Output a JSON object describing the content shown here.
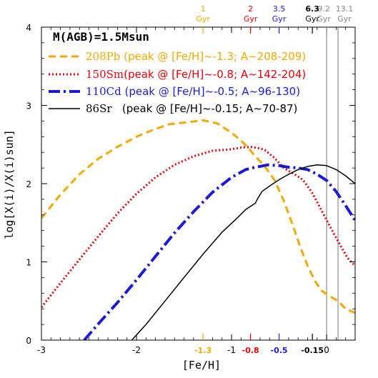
{
  "chart_data": {
    "type": "line",
    "title": "M(AGB)=1.5Msun",
    "xlabel": "[Fe/H]",
    "ylabel": "log[X(i)/X(i)sun]",
    "xlim": [
      -3,
      0.3
    ],
    "ylim": [
      0,
      4
    ],
    "x_ticks": [
      {
        "value": -3,
        "label": "-3"
      },
      {
        "value": -2,
        "label": "-2"
      },
      {
        "value": -1,
        "label": "-1"
      },
      {
        "value": 0,
        "label": "0"
      }
    ],
    "y_ticks": [
      {
        "value": 0,
        "label": "0"
      },
      {
        "value": 1,
        "label": "1"
      },
      {
        "value": 2,
        "label": "2"
      },
      {
        "value": 3,
        "label": "3"
      },
      {
        "value": 4,
        "label": "4"
      }
    ],
    "bottom_marks": [
      {
        "value": -1.3,
        "label": "-1.3",
        "color": "#f5a800"
      },
      {
        "value": -0.8,
        "label": "-0.8",
        "color": "#e8000b"
      },
      {
        "value": -0.5,
        "label": "-0.5",
        "color": "#1a1adb"
      },
      {
        "value": -0.15,
        "label": "-0.15",
        "color": "#000000"
      }
    ],
    "top_ages": [
      {
        "value": -1.3,
        "num": "1",
        "unit": "Gyr",
        "color": "#f5a800",
        "bold": false
      },
      {
        "value": -0.8,
        "num": "2",
        "unit": "Gyr",
        "color": "#e8000b",
        "bold": false
      },
      {
        "value": -0.5,
        "num": "3.5",
        "unit": "Gyr",
        "color": "#1a1adb",
        "bold": false
      },
      {
        "value": -0.15,
        "num": "6.3",
        "unit": "Gyr",
        "color": "#000000",
        "bold": true
      },
      {
        "value": 0.0,
        "num": "9.2",
        "unit": "Gyr",
        "color": "#888888",
        "bold": false
      },
      {
        "value": 0.12,
        "num": "13.1",
        "unit": "Gyr",
        "color": "#888888",
        "bold": false
      }
    ],
    "vertical_lines": [
      0.0,
      0.12
    ],
    "series": [
      {
        "name": "208Pb",
        "legend_rest": " (peak @ [Fe/H]~-1.3; A~208-209)",
        "color": "#f5a800",
        "dash": "10,6",
        "width": 3,
        "points": [
          [
            -3.0,
            1.56
          ],
          [
            -2.8,
            1.86
          ],
          [
            -2.6,
            2.12
          ],
          [
            -2.4,
            2.32
          ],
          [
            -2.2,
            2.47
          ],
          [
            -2.0,
            2.6
          ],
          [
            -1.8,
            2.7
          ],
          [
            -1.65,
            2.76
          ],
          [
            -1.5,
            2.78
          ],
          [
            -1.3,
            2.81
          ],
          [
            -1.15,
            2.77
          ],
          [
            -1.0,
            2.65
          ],
          [
            -0.9,
            2.55
          ],
          [
            -0.82,
            2.45
          ],
          [
            -0.75,
            2.35
          ],
          [
            -0.65,
            2.22
          ],
          [
            -0.55,
            2.05
          ],
          [
            -0.45,
            1.78
          ],
          [
            -0.35,
            1.45
          ],
          [
            -0.28,
            1.2
          ],
          [
            -0.2,
            0.95
          ],
          [
            -0.12,
            0.75
          ],
          [
            -0.05,
            0.63
          ],
          [
            0.05,
            0.55
          ],
          [
            0.12,
            0.5
          ],
          [
            0.2,
            0.4
          ],
          [
            0.3,
            0.35
          ]
        ]
      },
      {
        "name": "150Sm",
        "legend_rest": "(peak @ [Fe/H]~-0.8; A~142-204)",
        "color": "#e8000b",
        "dash": "2,3",
        "width": 3,
        "points": [
          [
            -3.0,
            0.42
          ],
          [
            -2.8,
            0.73
          ],
          [
            -2.6,
            1.03
          ],
          [
            -2.4,
            1.33
          ],
          [
            -2.2,
            1.62
          ],
          [
            -2.0,
            1.87
          ],
          [
            -1.8,
            2.08
          ],
          [
            -1.6,
            2.24
          ],
          [
            -1.4,
            2.35
          ],
          [
            -1.2,
            2.42
          ],
          [
            -1.0,
            2.44
          ],
          [
            -0.9,
            2.46
          ],
          [
            -0.8,
            2.47
          ],
          [
            -0.7,
            2.45
          ],
          [
            -0.65,
            2.43
          ],
          [
            -0.55,
            2.33
          ],
          [
            -0.45,
            2.2
          ],
          [
            -0.35,
            2.13
          ],
          [
            -0.25,
            2.05
          ],
          [
            -0.15,
            1.88
          ],
          [
            -0.05,
            1.65
          ],
          [
            0.05,
            1.42
          ],
          [
            0.15,
            1.2
          ],
          [
            0.22,
            1.05
          ],
          [
            0.3,
            0.95
          ]
        ]
      },
      {
        "name": "110Cd",
        "legend_rest": " (peak @ [Fe/H]~-0.5; A~96-130)",
        "color": "#1a1adb",
        "dash": "16,5,3,5",
        "width": 4,
        "points": [
          [
            -2.55,
            0.0
          ],
          [
            -2.4,
            0.21
          ],
          [
            -2.2,
            0.48
          ],
          [
            -2.0,
            0.77
          ],
          [
            -1.8,
            1.07
          ],
          [
            -1.6,
            1.37
          ],
          [
            -1.4,
            1.64
          ],
          [
            -1.2,
            1.89
          ],
          [
            -1.0,
            2.08
          ],
          [
            -0.85,
            2.18
          ],
          [
            -0.75,
            2.21
          ],
          [
            -0.7,
            2.22
          ],
          [
            -0.62,
            2.24
          ],
          [
            -0.5,
            2.23
          ],
          [
            -0.4,
            2.21
          ],
          [
            -0.3,
            2.2
          ],
          [
            -0.2,
            2.18
          ],
          [
            -0.1,
            2.12
          ],
          [
            0.0,
            2.04
          ],
          [
            0.1,
            1.9
          ],
          [
            0.2,
            1.72
          ],
          [
            0.3,
            1.53
          ]
        ]
      },
      {
        "name": "86Sr",
        "legend_rest": "   (peak @ [Fe/H]~-0.15; A~70-87)",
        "color": "#000000",
        "dash": "",
        "width": 1.5,
        "points": [
          [
            -2.05,
            0.0
          ],
          [
            -1.9,
            0.2
          ],
          [
            -1.7,
            0.5
          ],
          [
            -1.5,
            0.8
          ],
          [
            -1.3,
            1.1
          ],
          [
            -1.1,
            1.38
          ],
          [
            -0.95,
            1.55
          ],
          [
            -0.85,
            1.67
          ],
          [
            -0.75,
            1.75
          ],
          [
            -0.72,
            1.82
          ],
          [
            -0.68,
            1.9
          ],
          [
            -0.6,
            1.97
          ],
          [
            -0.5,
            2.05
          ],
          [
            -0.4,
            2.12
          ],
          [
            -0.3,
            2.18
          ],
          [
            -0.2,
            2.22
          ],
          [
            -0.1,
            2.24
          ],
          [
            0.0,
            2.23
          ],
          [
            0.1,
            2.18
          ],
          [
            0.2,
            2.1
          ],
          [
            0.3,
            2.0
          ]
        ]
      }
    ]
  }
}
